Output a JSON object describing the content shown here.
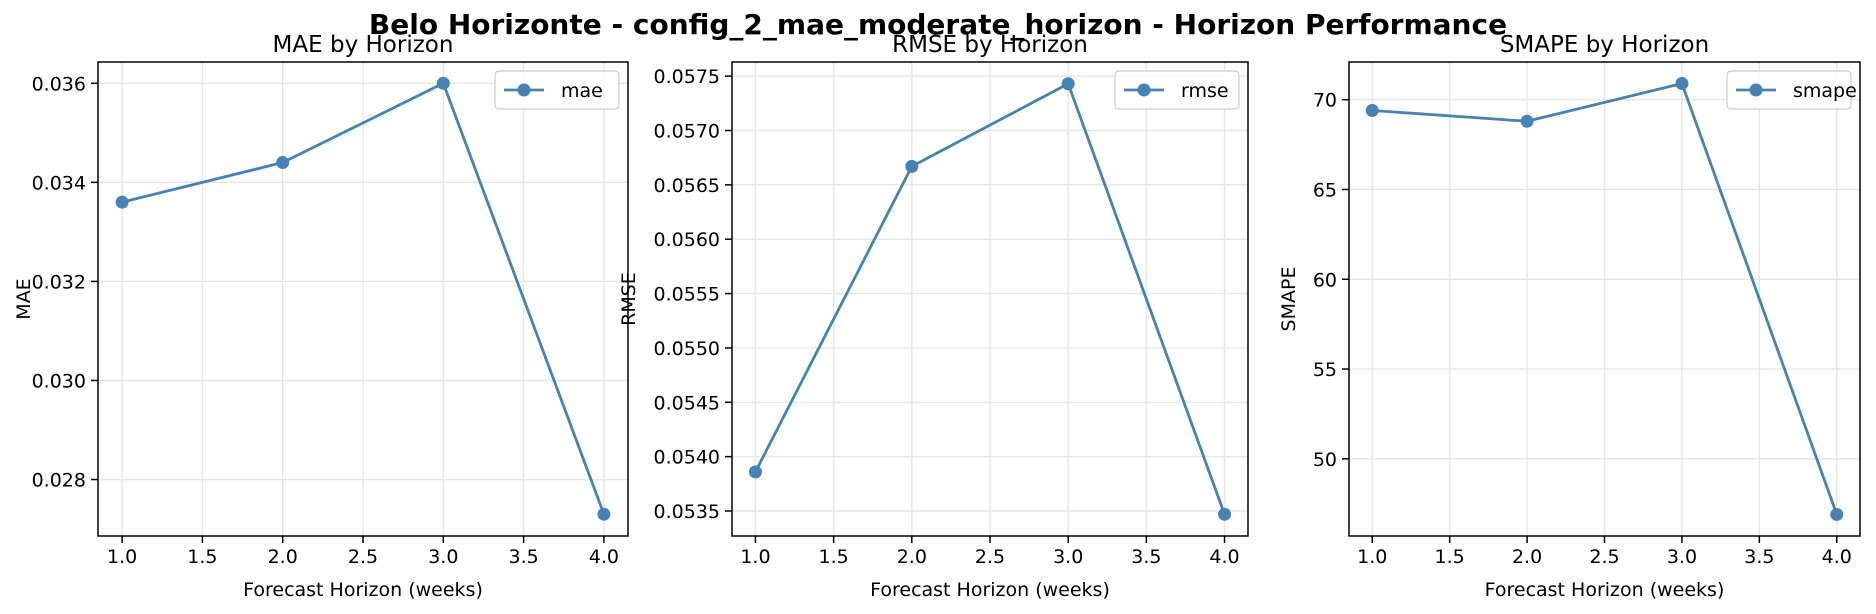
{
  "suptitle": "Belo Horizonte - config_2_mae_moderate_horizon - Horizon Performance",
  "colors": {
    "line": "#4682b4",
    "grid": "#e6e6e6",
    "axis": "#000000"
  },
  "chart_data": [
    {
      "type": "line",
      "title": "MAE by Horizon",
      "xlabel": "Forecast Horizon (weeks)",
      "ylabel": "MAE",
      "x": [
        1.0,
        2.0,
        3.0,
        4.0
      ],
      "series": [
        {
          "name": "mae",
          "values": [
            0.0336,
            0.0344,
            0.036,
            0.0273
          ]
        }
      ],
      "xlim": [
        0.85,
        4.15
      ],
      "ylim": [
        0.02686,
        0.03643
      ],
      "xticks": [
        1.0,
        1.5,
        2.0,
        2.5,
        3.0,
        3.5,
        4.0
      ],
      "xtick_labels": [
        "1.0",
        "1.5",
        "2.0",
        "2.5",
        "3.0",
        "3.5",
        "4.0"
      ],
      "yticks": [
        0.028,
        0.03,
        0.032,
        0.034,
        0.036
      ],
      "ytick_labels": [
        "0.028",
        "0.030",
        "0.032",
        "0.034",
        "0.036"
      ],
      "grid": true,
      "legend": "upper right"
    },
    {
      "type": "line",
      "title": "RMSE by Horizon",
      "xlabel": "Forecast Horizon (weeks)",
      "ylabel": "RMSE",
      "x": [
        1.0,
        2.0,
        3.0,
        4.0
      ],
      "series": [
        {
          "name": "rmse",
          "values": [
            0.05386,
            0.05667,
            0.05743,
            0.05347
          ]
        }
      ],
      "xlim": [
        0.85,
        4.15
      ],
      "ylim": [
        0.05327,
        0.05763
      ],
      "xticks": [
        1.0,
        1.5,
        2.0,
        2.5,
        3.0,
        3.5,
        4.0
      ],
      "xtick_labels": [
        "1.0",
        "1.5",
        "2.0",
        "2.5",
        "3.0",
        "3.5",
        "4.0"
      ],
      "yticks": [
        0.0535,
        0.054,
        0.0545,
        0.055,
        0.0555,
        0.056,
        0.0565,
        0.057,
        0.0575
      ],
      "ytick_labels": [
        "0.0535",
        "0.0540",
        "0.0545",
        "0.0550",
        "0.0555",
        "0.0560",
        "0.0565",
        "0.0570",
        "0.0575"
      ],
      "grid": true,
      "legend": "upper right"
    },
    {
      "type": "line",
      "title": "SMAPE by Horizon",
      "xlabel": "Forecast Horizon (weeks)",
      "ylabel": "SMAPE",
      "x": [
        1.0,
        2.0,
        3.0,
        4.0
      ],
      "series": [
        {
          "name": "smape",
          "values": [
            69.4,
            68.8,
            70.9,
            46.9
          ]
        }
      ],
      "xlim": [
        0.85,
        4.15
      ],
      "ylim": [
        45.7,
        72.1
      ],
      "xticks": [
        1.0,
        1.5,
        2.0,
        2.5,
        3.0,
        3.5,
        4.0
      ],
      "xtick_labels": [
        "1.0",
        "1.5",
        "2.0",
        "2.5",
        "3.0",
        "3.5",
        "4.0"
      ],
      "yticks": [
        50,
        55,
        60,
        65,
        70
      ],
      "ytick_labels": [
        "50",
        "55",
        "60",
        "65",
        "70"
      ],
      "grid": true,
      "legend": "upper right"
    }
  ]
}
